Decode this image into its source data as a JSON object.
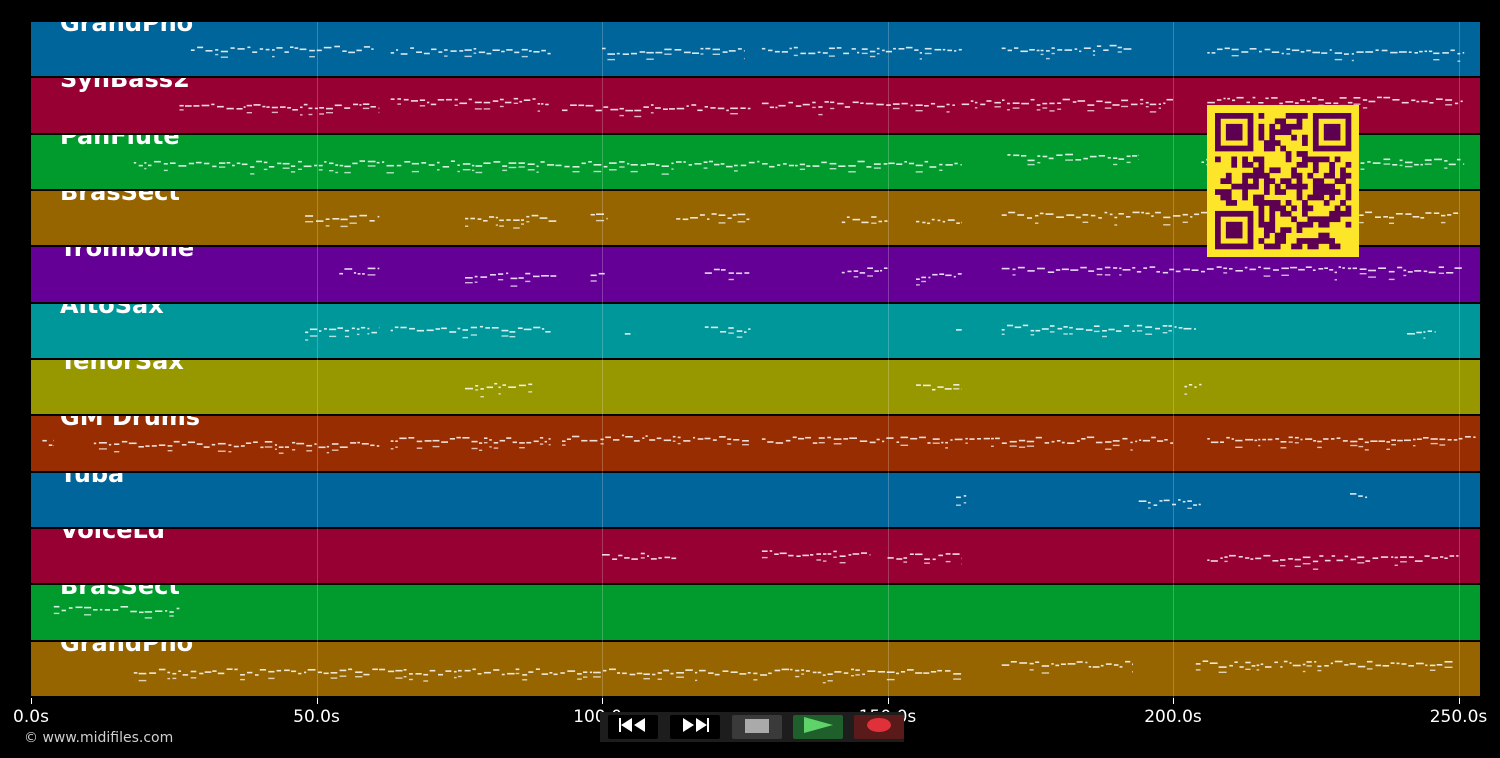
{
  "timeline": {
    "duration_s": 254,
    "ticks": [
      {
        "label": "0.0s",
        "value": 0
      },
      {
        "label": "50.0s",
        "value": 50
      },
      {
        "label": "100.0s",
        "value": 100
      },
      {
        "label": "150.0s",
        "value": 150
      },
      {
        "label": "200.0s",
        "value": 200
      },
      {
        "label": "250.0s",
        "value": 250
      }
    ]
  },
  "tracks": [
    {
      "name": "GrandPno",
      "color": "#00659a",
      "segments": [
        [
          28,
          60
        ],
        [
          63,
          91
        ],
        [
          100,
          125
        ],
        [
          128,
          163
        ],
        [
          170,
          193
        ],
        [
          206,
          251
        ]
      ]
    },
    {
      "name": "SynBass2",
      "color": "#970032",
      "segments": [
        [
          26,
          61
        ],
        [
          63,
          91
        ],
        [
          93,
          126
        ],
        [
          128,
          162
        ],
        [
          163,
          200
        ],
        [
          206,
          251
        ]
      ]
    },
    {
      "name": "PanFlute",
      "color": "#009a2d",
      "segments": [
        [
          18,
          163
        ],
        [
          171,
          194
        ],
        [
          205,
          251
        ]
      ]
    },
    {
      "name": "BrasSect",
      "color": "#966500",
      "segments": [
        [
          48,
          61
        ],
        [
          76,
          92
        ],
        [
          98,
          101
        ],
        [
          113,
          126
        ],
        [
          142,
          150
        ],
        [
          155,
          163
        ],
        [
          170,
          250
        ]
      ]
    },
    {
      "name": "Trombone",
      "color": "#650097",
      "segments": [
        [
          54,
          61
        ],
        [
          76,
          92
        ],
        [
          98,
          101
        ],
        [
          118,
          126
        ],
        [
          142,
          150
        ],
        [
          155,
          163
        ],
        [
          170,
          251
        ]
      ]
    },
    {
      "name": "AltoSax",
      "color": "#00979a",
      "segments": [
        [
          48,
          61
        ],
        [
          63,
          91
        ],
        [
          104,
          105
        ],
        [
          118,
          126
        ],
        [
          162,
          163
        ],
        [
          170,
          204
        ],
        [
          241,
          246
        ]
      ]
    },
    {
      "name": "TenorSax",
      "color": "#979700",
      "segments": [
        [
          76,
          88
        ],
        [
          155,
          163
        ],
        [
          202,
          205
        ]
      ]
    },
    {
      "name": "GM Drums",
      "color": "#972d00",
      "segments": [
        [
          2,
          4
        ],
        [
          11,
          61
        ],
        [
          63,
          91
        ],
        [
          93,
          126
        ],
        [
          128,
          200
        ],
        [
          206,
          253
        ]
      ]
    },
    {
      "name": "Tuba",
      "color": "#00659a",
      "segments": [
        [
          162,
          164
        ],
        [
          194,
          205
        ],
        [
          231,
          234
        ]
      ]
    },
    {
      "name": "VoiceLd",
      "color": "#970032",
      "segments": [
        [
          100,
          113
        ],
        [
          128,
          147
        ],
        [
          150,
          163
        ],
        [
          206,
          250
        ]
      ]
    },
    {
      "name": "BrasSect",
      "color": "#009a2d",
      "segments": [
        [
          4,
          26
        ]
      ]
    },
    {
      "name": "GrandPno",
      "color": "#966500",
      "segments": [
        [
          18,
          163
        ],
        [
          170,
          193
        ],
        [
          204,
          249
        ]
      ]
    }
  ],
  "qr": {
    "fg": "#5e0052",
    "bg": "#fde52a"
  },
  "transport": {
    "buttons": [
      {
        "id": "rewind",
        "icon": "rewind-icon"
      },
      {
        "id": "fast-forward",
        "icon": "fast-forward-icon"
      },
      {
        "id": "stop",
        "icon": "stop-icon"
      },
      {
        "id": "play",
        "icon": "play-icon"
      },
      {
        "id": "record",
        "icon": "record-icon"
      }
    ]
  },
  "footer": {
    "copyright": "© www.midifiles.com"
  }
}
